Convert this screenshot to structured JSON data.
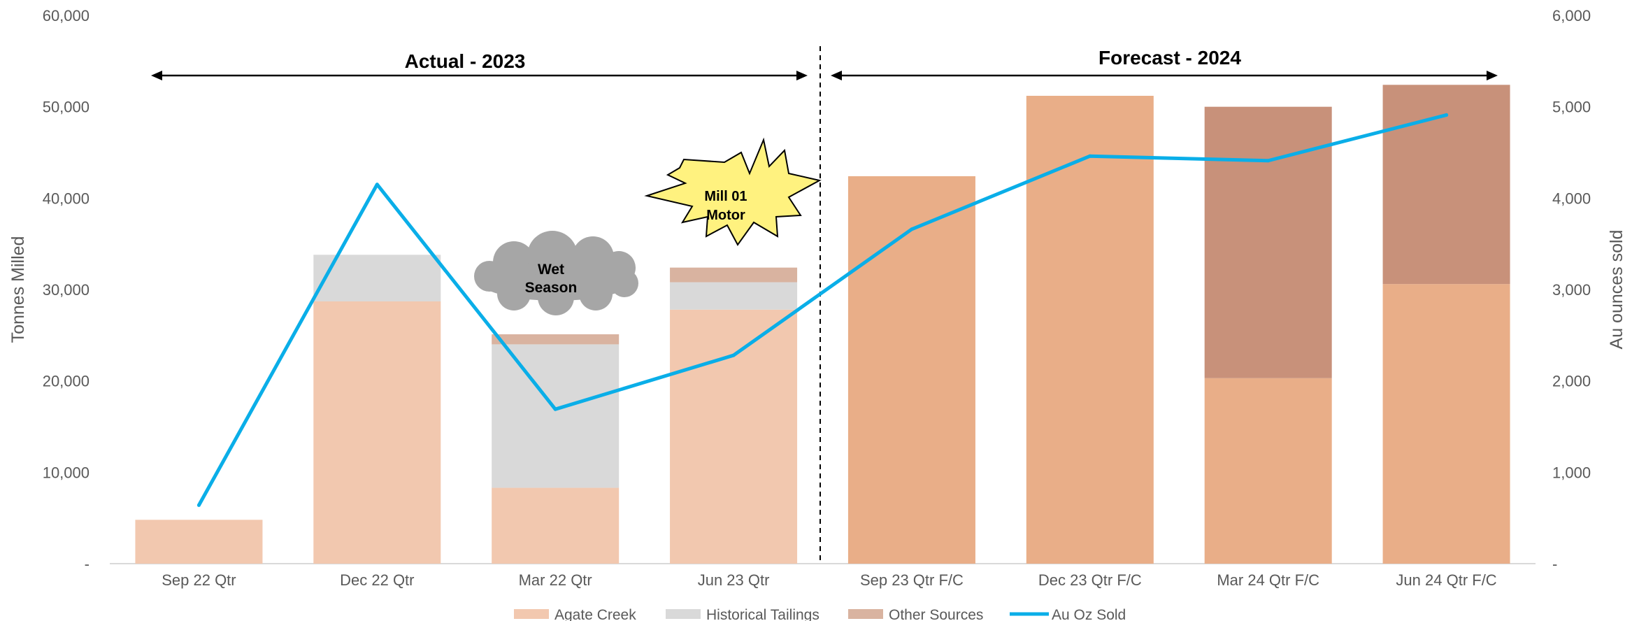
{
  "chart_data": {
    "type": "bar",
    "stacked": true,
    "categories": [
      "Sep 22 Qtr",
      "Dec 22 Qtr",
      "Mar 22 Qtr",
      "Jun 23 Qtr",
      "Sep 23 Qtr F/C",
      "Dec 23 Qtr F/C",
      "Mar 24 Qtr F/C",
      "Jun 24 Qtr F/C"
    ],
    "series": [
      {
        "name": "Agate Creek",
        "axis": "left",
        "values": [
          4800,
          28700,
          8300,
          27800,
          42400,
          51200,
          20300,
          30600
        ],
        "colors": [
          "#F2C8AF",
          "#F2C8AF",
          "#F2C8AF",
          "#F2C8AF",
          "#E9AE88",
          "#E9AE88",
          "#E9AE88",
          "#E9AE88"
        ]
      },
      {
        "name": "Historical Tailings",
        "axis": "left",
        "values": [
          0,
          5100,
          15700,
          3000,
          0,
          0,
          0,
          0
        ],
        "color": "#D9D9D9"
      },
      {
        "name": "Other Sources",
        "axis": "left",
        "values": [
          0,
          0,
          1100,
          1600,
          0,
          0,
          29700,
          21800
        ],
        "colors": [
          "#D9B3A0",
          "#D9B3A0",
          "#D9B3A0",
          "#D9B3A0",
          "#C8917A",
          "#C8917A",
          "#C8917A",
          "#C8917A"
        ]
      },
      {
        "name": "Au Oz Sold",
        "type": "line",
        "axis": "right",
        "values": [
          640,
          4150,
          1690,
          2280,
          3660,
          4460,
          4410,
          4910
        ],
        "color": "#0AAEE8"
      }
    ],
    "ylabel": "Tonnes Milled",
    "y2label": "Au ounces sold",
    "ylim": [
      0,
      60000
    ],
    "y2lim": [
      0,
      6000
    ],
    "yticks": [
      "-",
      "10,000",
      "20,000",
      "30,000",
      "40,000",
      "50,000",
      "60,000"
    ],
    "y2ticks": [
      "-",
      "1,000",
      "2,000",
      "3,000",
      "4,000",
      "5,000",
      "6,000"
    ],
    "legend_position": "bottom",
    "annotations": {
      "actual_label": "Actual - 2023",
      "forecast_label": "Forecast - 2024",
      "cloud_line1": "Wet",
      "cloud_line2": "Season",
      "burst_line1": "Mill 01",
      "burst_line2": "Motor"
    }
  }
}
